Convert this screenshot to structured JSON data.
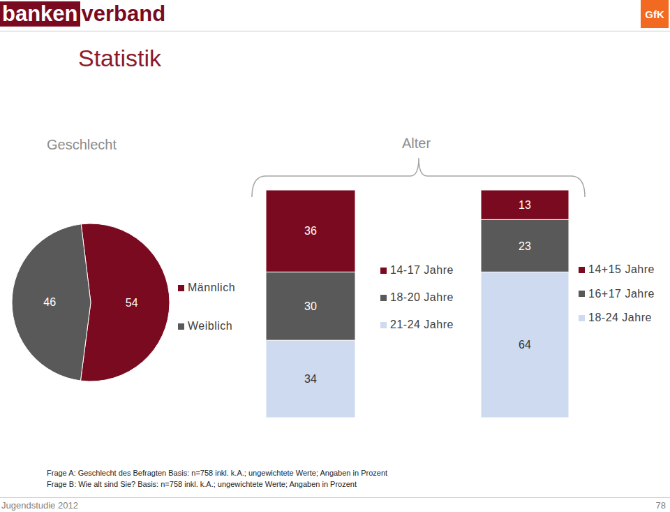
{
  "header": {
    "logo": [
      "banken",
      "verband"
    ],
    "brand": "GfK",
    "title": "Statistik"
  },
  "chart_data": [
    {
      "type": "pie",
      "title": "Geschlecht",
      "categories": [
        "Männlich",
        "Weiblich"
      ],
      "values": [
        54,
        46
      ],
      "colors": [
        "#7a0a1f",
        "#595959"
      ],
      "data_labels": true,
      "legend": "right"
    },
    {
      "type": "bar",
      "title": "Alter",
      "stacked": true,
      "categories": [
        null
      ],
      "series": [
        {
          "name": "14-17 Jahre",
          "color": "#7a0a1f",
          "values": [
            36
          ]
        },
        {
          "name": "18-20 Jahre",
          "color": "#595959",
          "values": [
            30
          ]
        },
        {
          "name": "21-24 Jahre",
          "color": "#cddaf0",
          "values": [
            34
          ]
        }
      ],
      "ylim": [
        0,
        100
      ],
      "tick_labels": false,
      "data_labels": true,
      "legend": "right"
    },
    {
      "type": "bar",
      "stacked": true,
      "categories": [
        null
      ],
      "series": [
        {
          "name": "14+15 Jahre",
          "color": "#7a0a1f",
          "values": [
            13
          ]
        },
        {
          "name": "16+17 Jahre",
          "color": "#595959",
          "values": [
            23
          ]
        },
        {
          "name": "18-24 Jahre",
          "color": "#cddaf0",
          "values": [
            64
          ]
        }
      ],
      "ylim": [
        0,
        100
      ],
      "tick_labels": false,
      "data_labels": true,
      "legend": "right"
    }
  ],
  "footnotes": [
    "Frage A: Geschlecht des Befragten Basis: n=758 inkl. k.A.; ungewichtete Werte; Angaben in Prozent",
    "Frage B: Wie alt sind Sie? Basis: n=758 inkl. k.A.; ungewichtete Werte; Angaben in Prozent"
  ],
  "footer": {
    "left": "Jugendstudie 2012",
    "page": "78"
  }
}
